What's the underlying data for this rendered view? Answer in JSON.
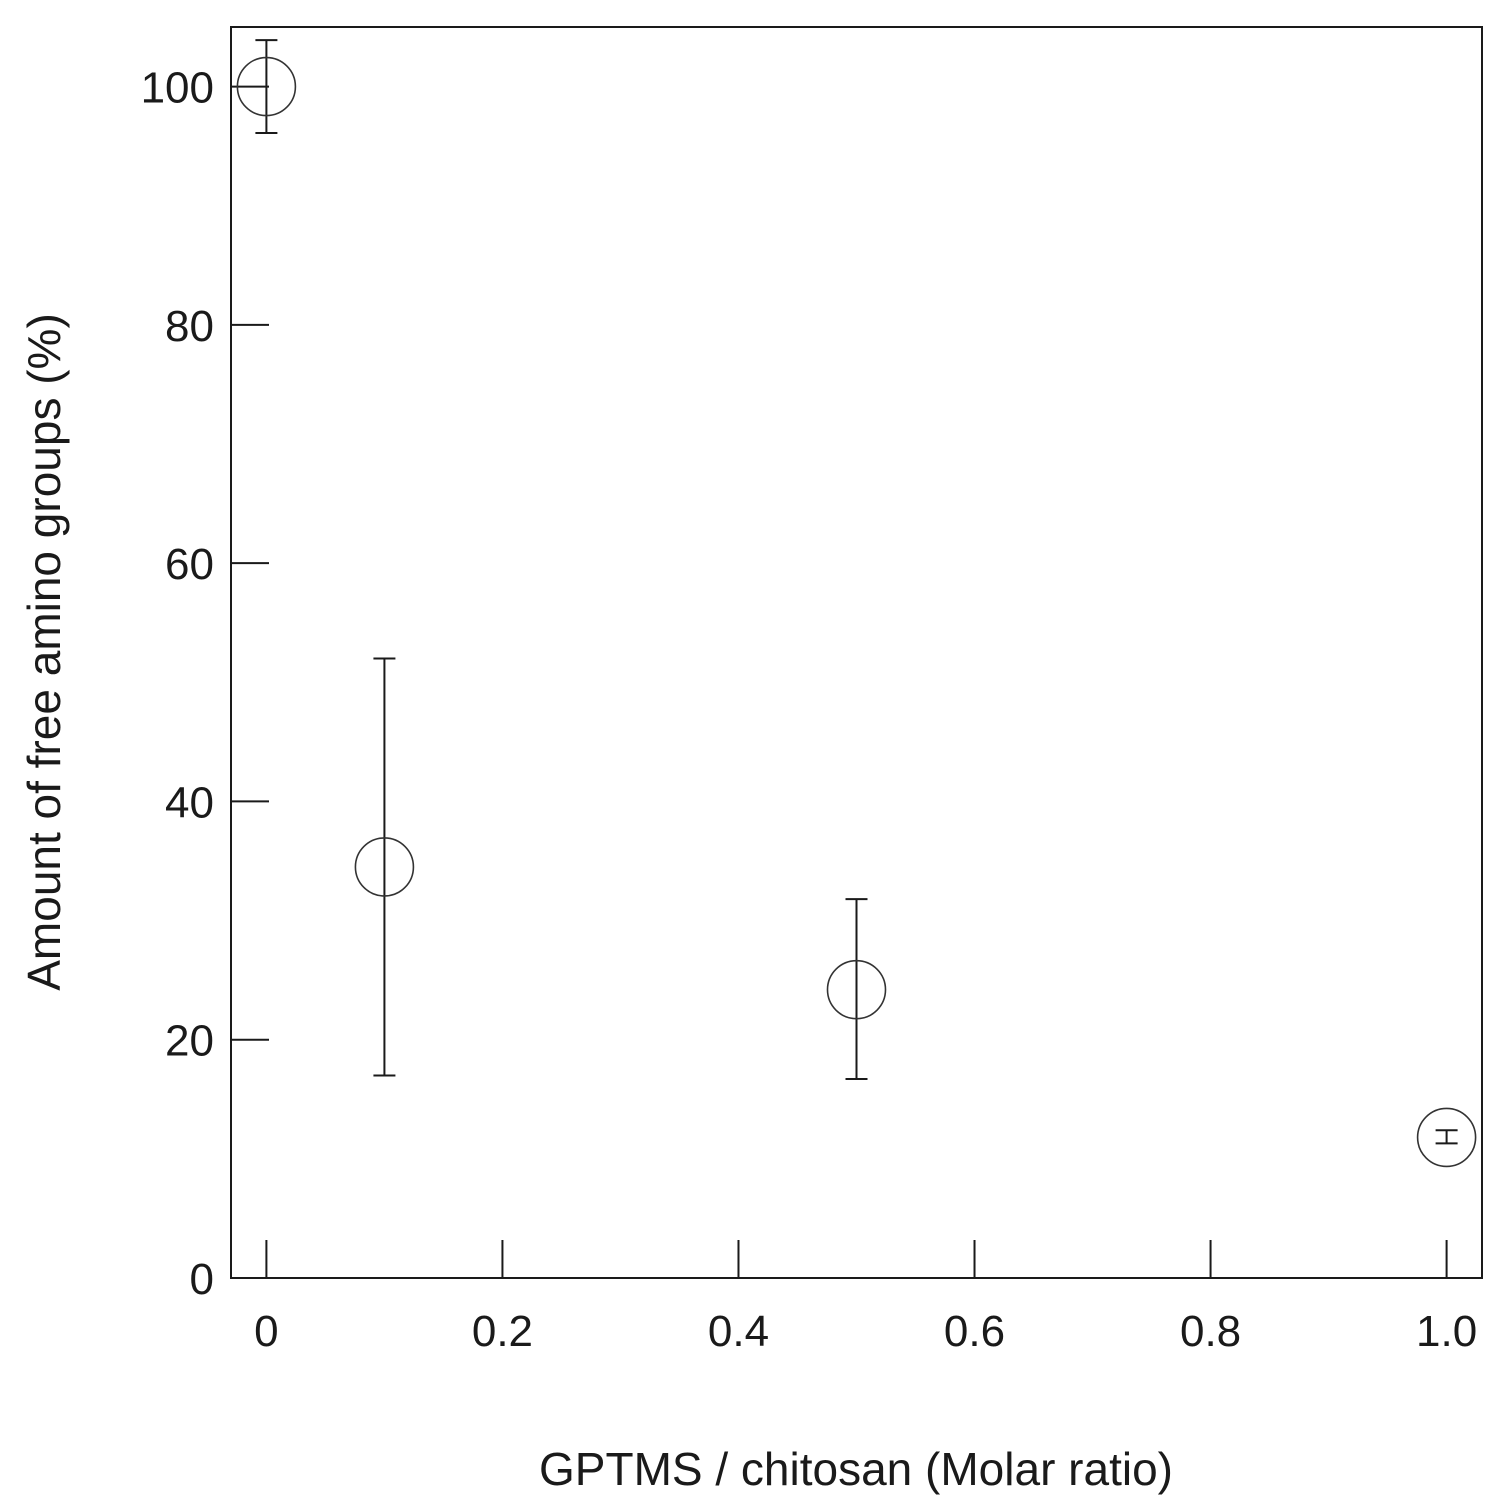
{
  "chart_data": {
    "type": "scatter",
    "title": "",
    "xlabel": "GPTMS / chitosan (Molar ratio)",
    "ylabel": "Amount of free amino groups (%)",
    "xlim": [
      -0.03,
      1.03
    ],
    "ylim": [
      0,
      105
    ],
    "x_ticks": [
      0,
      0.2,
      0.4,
      0.6,
      0.8,
      1.0
    ],
    "x_tick_labels": [
      "0",
      "0.2",
      "0.4",
      "0.6",
      "0.8",
      "1.0"
    ],
    "y_ticks": [
      0,
      20,
      40,
      60,
      80,
      100
    ],
    "y_tick_labels": [
      "0",
      "20",
      "40",
      "60",
      "80",
      "100"
    ],
    "grid": false,
    "legend": "none",
    "marker": "open-circle",
    "series": [
      {
        "x": [
          0,
          0.1,
          0.5,
          1.0
        ],
        "y": [
          100,
          34.5,
          24.2,
          11.8
        ],
        "err_low": [
          96.1,
          17,
          16.7,
          11.3
        ],
        "err_high": [
          103.9,
          52,
          31.8,
          12.4
        ]
      }
    ]
  }
}
